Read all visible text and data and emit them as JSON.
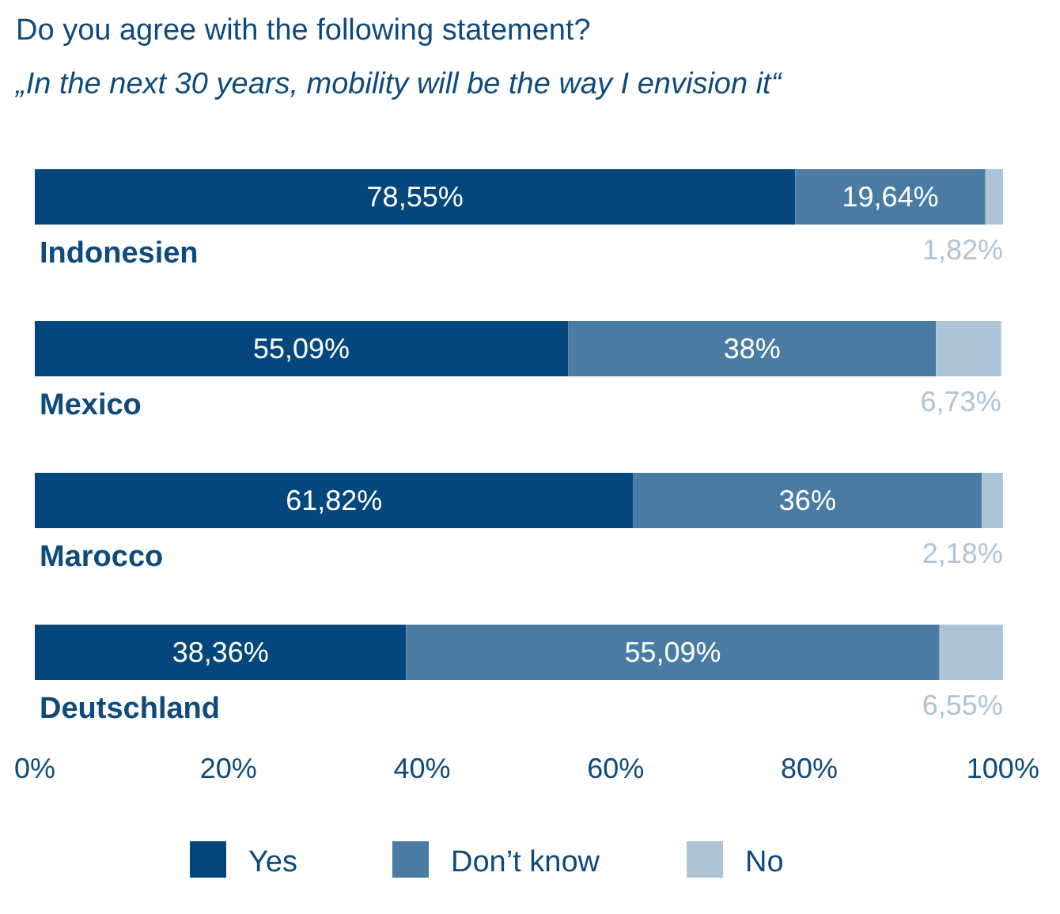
{
  "chart_data": {
    "type": "bar",
    "orientation": "horizontal",
    "stacked": true,
    "title": "Do you agree with the following statement?",
    "subtitle": "„In the next 30 years, mobility will be the way I envision it“",
    "categories": [
      "Indonesien",
      "Mexico",
      "Marocco",
      "Deutschland"
    ],
    "series": [
      {
        "name": "Yes",
        "color": "#03477c",
        "values": [
          78.55,
          55.09,
          61.82,
          38.36
        ],
        "value_labels": [
          "78,55%",
          "55,09%",
          "61,82%",
          "38,36%"
        ]
      },
      {
        "name": "Don’t know",
        "color": "#4a7ca3",
        "values": [
          19.64,
          38,
          36,
          55.09
        ],
        "value_labels": [
          "19,64%",
          "38%",
          "36%",
          "55,09%"
        ]
      },
      {
        "name": "No",
        "color": "#adc4d6",
        "values": [
          1.82,
          6.73,
          2.18,
          6.55
        ],
        "value_labels": [
          "1,82%",
          "6,73%",
          "2,18%",
          "6,55%"
        ]
      }
    ],
    "xlim": [
      0,
      100.01
    ],
    "xticks": [
      {
        "value": 0,
        "label": "0%"
      },
      {
        "value": 20,
        "label": "20%"
      },
      {
        "value": 40,
        "label": "40%"
      },
      {
        "value": 60,
        "label": "60%"
      },
      {
        "value": 80,
        "label": "80%"
      },
      {
        "value": 100,
        "label": "100%"
      }
    ],
    "grid": false,
    "legend": "bottom"
  }
}
